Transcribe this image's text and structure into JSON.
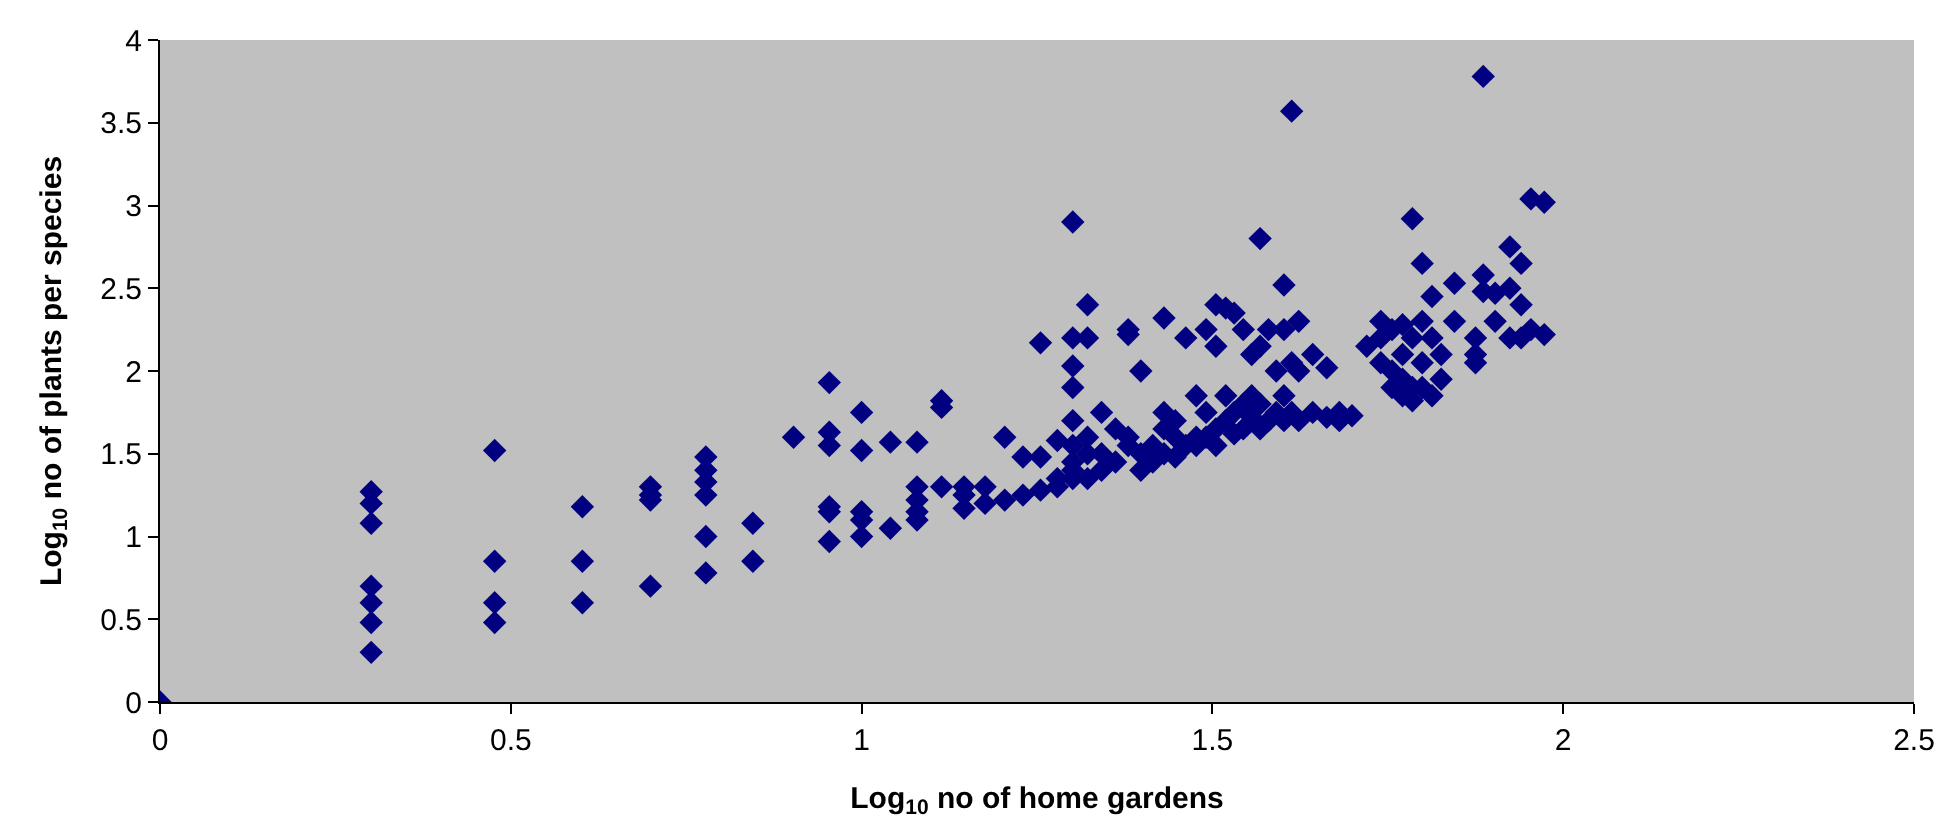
{
  "chart_data": {
    "type": "scatter",
    "xlabel": "Log$_{10}$ no of home gardens",
    "ylabel": "Log$_{10}$ no of plants per species",
    "series": [
      {
        "color": "#000080",
        "x": [
          0,
          0.301,
          0.301,
          0.301,
          0.301,
          0.301,
          0.301,
          0.301,
          0.477,
          0.477,
          0.477,
          0.477,
          0.602,
          0.602,
          0.602,
          0.699,
          0.699,
          0.699,
          0.699,
          0.778,
          0.778,
          0.778,
          0.778,
          0.778,
          0.778,
          0.845,
          0.845,
          0.903,
          0.954,
          0.954,
          0.954,
          0.954,
          0.954,
          0.954,
          1.0,
          1.0,
          1.0,
          1.0,
          1.0,
          1.041,
          1.041,
          1.079,
          1.079,
          1.079,
          1.079,
          1.079,
          1.114,
          1.114,
          1.114,
          1.146,
          1.146,
          1.146,
          1.176,
          1.176,
          1.204,
          1.204,
          1.23,
          1.23,
          1.255,
          1.255,
          1.255,
          1.279,
          1.279,
          1.279,
          1.301,
          1.301,
          1.301,
          1.301,
          1.301,
          1.301,
          1.301,
          1.301,
          1.301,
          1.322,
          1.322,
          1.322,
          1.322,
          1.322,
          1.342,
          1.342,
          1.342,
          1.362,
          1.362,
          1.38,
          1.38,
          1.38,
          1.38,
          1.398,
          1.398,
          1.398,
          1.415,
          1.415,
          1.431,
          1.431,
          1.431,
          1.431,
          1.447,
          1.447,
          1.447,
          1.462,
          1.462,
          1.477,
          1.477,
          1.477,
          1.491,
          1.491,
          1.491,
          1.505,
          1.505,
          1.505,
          1.505,
          1.519,
          1.519,
          1.519,
          1.531,
          1.531,
          1.531,
          1.544,
          1.544,
          1.544,
          1.556,
          1.556,
          1.556,
          1.568,
          1.568,
          1.568,
          1.568,
          1.58,
          1.58,
          1.591,
          1.591,
          1.602,
          1.602,
          1.602,
          1.602,
          1.613,
          1.613,
          1.613,
          1.623,
          1.623,
          1.623,
          1.643,
          1.643,
          1.663,
          1.663,
          1.681,
          1.681,
          1.699,
          1.72,
          1.74,
          1.74,
          1.74,
          1.756,
          1.756,
          1.756,
          1.771,
          1.771,
          1.771,
          1.771,
          1.785,
          1.785,
          1.785,
          1.785,
          1.799,
          1.799,
          1.799,
          1.799,
          1.813,
          1.813,
          1.813,
          1.826,
          1.826,
          1.845,
          1.845,
          1.875,
          1.875,
          1.875,
          1.886,
          1.886,
          1.886,
          1.903,
          1.903,
          1.924,
          1.924,
          1.924,
          1.94,
          1.94,
          1.94,
          1.954,
          1.954,
          1.973,
          1.973
        ],
        "values": [
          0,
          1.27,
          1.2,
          1.08,
          0.7,
          0.6,
          0.48,
          0.3,
          1.52,
          0.85,
          0.6,
          0.48,
          1.18,
          0.85,
          0.6,
          1.3,
          1.25,
          1.22,
          0.7,
          1.48,
          1.4,
          1.33,
          1.25,
          1.0,
          0.78,
          1.08,
          0.85,
          1.6,
          1.93,
          1.63,
          1.55,
          1.18,
          1.15,
          0.97,
          1.75,
          1.52,
          1.15,
          1.1,
          1.0,
          1.57,
          1.05,
          1.57,
          1.3,
          1.22,
          1.15,
          1.1,
          1.82,
          1.78,
          1.3,
          1.3,
          1.25,
          1.17,
          1.3,
          1.2,
          1.6,
          1.22,
          1.48,
          1.25,
          2.17,
          1.48,
          1.28,
          1.58,
          1.35,
          1.3,
          2.9,
          2.2,
          2.03,
          1.9,
          1.7,
          1.55,
          1.45,
          1.4,
          1.35,
          2.4,
          2.2,
          1.6,
          1.5,
          1.35,
          1.75,
          1.5,
          1.4,
          1.65,
          1.45,
          2.25,
          2.22,
          1.6,
          1.55,
          2.0,
          1.5,
          1.4,
          1.55,
          1.45,
          2.32,
          1.75,
          1.65,
          1.5,
          1.7,
          1.6,
          1.48,
          2.2,
          1.55,
          1.85,
          1.6,
          1.55,
          2.25,
          1.75,
          1.6,
          2.4,
          2.15,
          1.65,
          1.55,
          2.38,
          1.85,
          1.7,
          2.35,
          1.75,
          1.62,
          2.25,
          1.8,
          1.65,
          2.1,
          1.85,
          1.72,
          2.8,
          2.15,
          1.8,
          1.65,
          2.25,
          1.7,
          2.0,
          1.75,
          2.52,
          2.25,
          1.85,
          1.7,
          3.57,
          2.05,
          1.75,
          2.3,
          2.0,
          1.7,
          2.1,
          1.75,
          2.02,
          1.72,
          1.75,
          1.7,
          1.73,
          2.15,
          2.3,
          2.2,
          2.05,
          2.25,
          2.0,
          1.9,
          2.28,
          2.1,
          1.95,
          1.85,
          2.92,
          2.2,
          1.9,
          1.82,
          2.65,
          2.3,
          2.05,
          1.9,
          2.45,
          2.2,
          1.85,
          2.1,
          1.95,
          2.53,
          2.3,
          2.2,
          2.1,
          2.05,
          3.78,
          2.58,
          2.48,
          2.47,
          2.3,
          2.75,
          2.5,
          2.2,
          2.65,
          2.4,
          2.2,
          3.04,
          2.25,
          3.02,
          2.22
        ]
      }
    ],
    "marker": "diamond",
    "xlim": [
      0,
      2.5
    ],
    "xticks": [
      0,
      0.5,
      1,
      1.5,
      2,
      2.5
    ],
    "ylim": [
      0,
      4
    ],
    "yticks": [
      0,
      0.5,
      1,
      1.5,
      2,
      2.5,
      3,
      3.5,
      4
    ],
    "grid": false
  }
}
